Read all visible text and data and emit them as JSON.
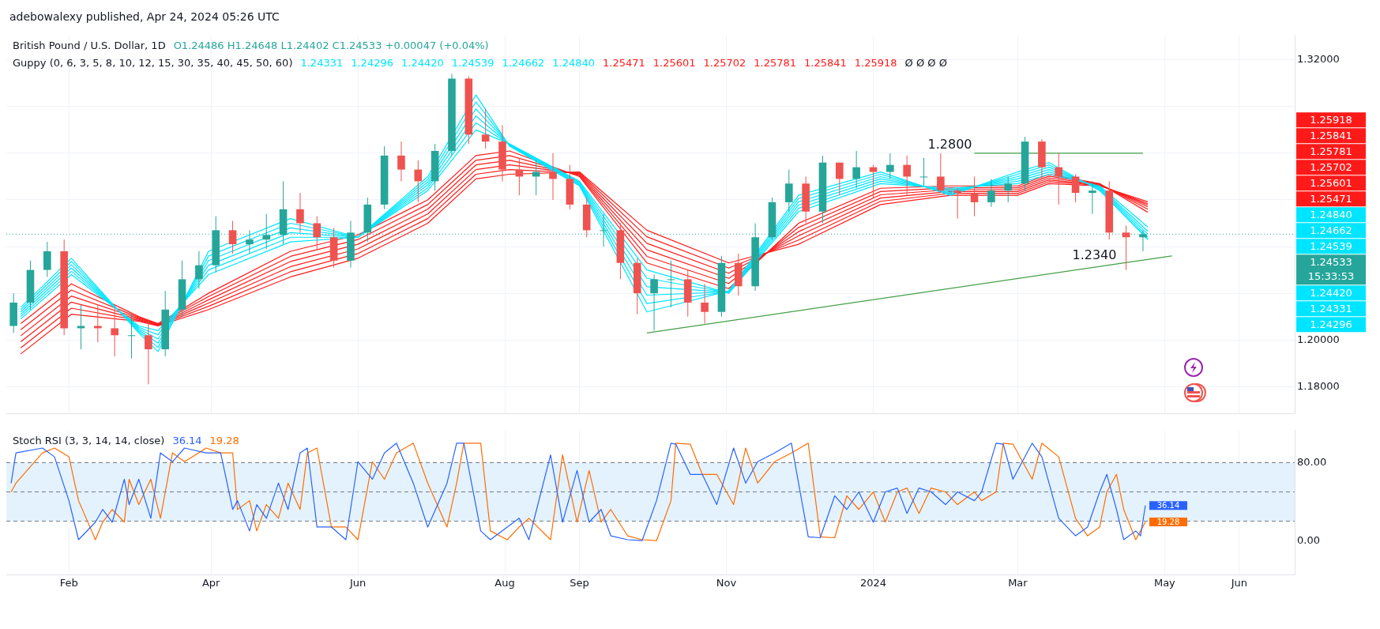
{
  "chart_data": [
    {
      "type": "candlestick",
      "title": "British Pound / U.S. Dollar, 1D",
      "subtitle": "O1.24486 H1.24648 L1.24402 C1.24533 +0.00047 (+0.04%)",
      "legend_title": "Guppy (0, 6, 3, 5, 8, 10, 12, 15, 30, 35, 40, 45, 50, 60)",
      "annotations": [
        "adebowalexy published, Apr 24, 2024 05:26 UTC",
        "1.24331",
        "1.24296",
        "1.24420",
        "1.24539",
        "1.24662",
        "1.24840",
        "1.25471",
        "1.25601",
        "1.25702",
        "1.25781",
        "1.25841",
        "1.25918",
        "Ø Ø Ø Ø",
        "15:33:53",
        {
          "text": "1.2800",
          "x": "2024-02-12",
          "y": 1.28
        },
        {
          "text": "1.2340",
          "x": "2024-04-12",
          "y": 1.2327
        }
      ],
      "x": [
        "2023-01-09",
        "2023-01-16",
        "2023-01-23",
        "2023-01-30",
        "2023-02-06",
        "2023-02-13",
        "2023-02-20",
        "2023-02-27",
        "2023-03-06",
        "2023-03-13",
        "2023-03-20",
        "2023-03-27",
        "2023-04-03",
        "2023-04-10",
        "2023-04-17",
        "2023-04-24",
        "2023-05-01",
        "2023-05-08",
        "2023-05-15",
        "2023-05-22",
        "2023-05-29",
        "2023-06-05",
        "2023-06-12",
        "2023-06-19",
        "2023-06-26",
        "2023-07-03",
        "2023-07-10",
        "2023-07-17",
        "2023-07-24",
        "2023-07-31",
        "2023-08-07",
        "2023-08-14",
        "2023-08-21",
        "2023-08-28",
        "2023-09-04",
        "2023-09-11",
        "2023-09-18",
        "2023-09-25",
        "2023-10-02",
        "2023-10-09",
        "2023-10-16",
        "2023-10-23",
        "2023-10-30",
        "2023-11-06",
        "2023-11-13",
        "2023-11-20",
        "2023-11-27",
        "2023-12-04",
        "2023-12-11",
        "2023-12-18",
        "2023-12-25",
        "2024-01-01",
        "2024-01-08",
        "2024-01-15",
        "2024-01-22",
        "2024-01-29",
        "2024-02-05",
        "2024-02-12",
        "2024-02-19",
        "2024-02-26",
        "2024-03-04",
        "2024-03-11",
        "2024-03-18",
        "2024-03-25",
        "2024-04-01",
        "2024-04-08",
        "2024-04-15",
        "2024-04-22"
      ],
      "ohlc": [
        [
          1.206,
          1.22,
          1.203,
          1.216
        ],
        [
          1.216,
          1.234,
          1.213,
          1.23
        ],
        [
          1.23,
          1.242,
          1.227,
          1.238
        ],
        [
          1.238,
          1.243,
          1.202,
          1.205
        ],
        [
          1.205,
          1.215,
          1.196,
          1.206
        ],
        [
          1.206,
          1.215,
          1.199,
          1.205
        ],
        [
          1.205,
          1.214,
          1.193,
          1.202
        ],
        [
          1.202,
          1.211,
          1.192,
          1.202
        ],
        [
          1.202,
          1.208,
          1.181,
          1.196
        ],
        [
          1.196,
          1.221,
          1.193,
          1.213
        ],
        [
          1.213,
          1.234,
          1.21,
          1.226
        ],
        [
          1.226,
          1.238,
          1.222,
          1.232
        ],
        [
          1.232,
          1.253,
          1.229,
          1.247
        ],
        [
          1.247,
          1.251,
          1.237,
          1.241
        ],
        [
          1.241,
          1.247,
          1.237,
          1.243
        ],
        [
          1.243,
          1.254,
          1.239,
          1.245
        ],
        [
          1.245,
          1.268,
          1.241,
          1.256
        ],
        [
          1.256,
          1.263,
          1.246,
          1.25
        ],
        [
          1.25,
          1.253,
          1.239,
          1.244
        ],
        [
          1.244,
          1.248,
          1.231,
          1.234
        ],
        [
          1.234,
          1.251,
          1.231,
          1.246
        ],
        [
          1.246,
          1.261,
          1.242,
          1.258
        ],
        [
          1.258,
          1.283,
          1.256,
          1.279
        ],
        [
          1.279,
          1.285,
          1.268,
          1.273
        ],
        [
          1.273,
          1.277,
          1.259,
          1.268
        ],
        [
          1.268,
          1.284,
          1.264,
          1.281
        ],
        [
          1.281,
          1.314,
          1.279,
          1.312
        ],
        [
          1.312,
          1.313,
          1.284,
          1.288
        ],
        [
          1.288,
          1.299,
          1.282,
          1.285
        ],
        [
          1.285,
          1.292,
          1.268,
          1.273
        ],
        [
          1.273,
          1.278,
          1.262,
          1.27
        ],
        [
          1.27,
          1.277,
          1.262,
          1.272
        ],
        [
          1.272,
          1.28,
          1.26,
          1.269
        ],
        [
          1.269,
          1.275,
          1.256,
          1.258
        ],
        [
          1.258,
          1.261,
          1.244,
          1.247
        ],
        [
          1.247,
          1.254,
          1.24,
          1.247
        ],
        [
          1.247,
          1.25,
          1.226,
          1.233
        ],
        [
          1.233,
          1.235,
          1.211,
          1.22
        ],
        [
          1.22,
          1.228,
          1.204,
          1.226
        ],
        [
          1.226,
          1.234,
          1.214,
          1.226
        ],
        [
          1.226,
          1.23,
          1.21,
          1.216
        ],
        [
          1.216,
          1.224,
          1.207,
          1.212
        ],
        [
          1.212,
          1.236,
          1.21,
          1.233
        ],
        [
          1.233,
          1.237,
          1.219,
          1.223
        ],
        [
          1.223,
          1.25,
          1.221,
          1.244
        ],
        [
          1.244,
          1.261,
          1.243,
          1.259
        ],
        [
          1.259,
          1.273,
          1.255,
          1.267
        ],
        [
          1.267,
          1.27,
          1.25,
          1.255
        ],
        [
          1.255,
          1.279,
          1.25,
          1.276
        ],
        [
          1.276,
          1.276,
          1.262,
          1.269
        ],
        [
          1.269,
          1.281,
          1.265,
          1.274
        ],
        [
          1.274,
          1.275,
          1.261,
          1.272
        ],
        [
          1.272,
          1.28,
          1.269,
          1.275
        ],
        [
          1.275,
          1.279,
          1.262,
          1.27
        ],
        [
          1.27,
          1.278,
          1.266,
          1.27
        ],
        [
          1.27,
          1.28,
          1.263,
          1.264
        ],
        [
          1.264,
          1.265,
          1.252,
          1.263
        ],
        [
          1.263,
          1.27,
          1.253,
          1.259
        ],
        [
          1.259,
          1.269,
          1.257,
          1.264
        ],
        [
          1.264,
          1.27,
          1.259,
          1.267
        ],
        [
          1.267,
          1.287,
          1.264,
          1.285
        ],
        [
          1.285,
          1.286,
          1.269,
          1.274
        ],
        [
          1.274,
          1.28,
          1.258,
          1.27
        ],
        [
          1.27,
          1.271,
          1.259,
          1.263
        ],
        [
          1.263,
          1.268,
          1.254,
          1.264
        ],
        [
          1.264,
          1.268,
          1.243,
          1.246
        ],
        [
          1.246,
          1.249,
          1.23,
          1.244
        ],
        [
          1.244,
          1.247,
          1.238,
          1.2453
        ]
      ],
      "series": [
        {
          "type": "line",
          "color": "#00e5ff",
          "x": [
            "2023-01-12",
            "2023-02-02",
            "2023-03-02",
            "2023-03-10",
            "2023-03-31",
            "2023-05-04",
            "2023-06-01",
            "2023-06-30",
            "2023-07-20",
            "2023-08-03",
            "2023-09-01",
            "2023-09-29",
            "2023-11-02",
            "2023-12-01",
            "2024-01-04",
            "2024-02-02",
            "2024-03-01",
            "2024-03-14",
            "2024-04-04",
            "2024-04-24"
          ],
          "values": [
            1.214,
            1.235,
            1.203,
            1.195,
            1.238,
            1.252,
            1.244,
            1.27,
            1.305,
            1.283,
            1.266,
            1.212,
            1.221,
            1.262,
            1.272,
            1.262,
            1.272,
            1.276,
            1.264,
            1.24331
          ]
        },
        {
          "type": "line",
          "color": "#00e5ff",
          "x": [
            "2023-01-12",
            "2023-02-02",
            "2023-03-02",
            "2023-03-10",
            "2023-03-31",
            "2023-05-04",
            "2023-06-01",
            "2023-06-30",
            "2023-07-20",
            "2023-08-03",
            "2023-09-01",
            "2023-09-29",
            "2023-11-02",
            "2023-12-01",
            "2024-01-04",
            "2024-02-02",
            "2024-03-01",
            "2024-03-14",
            "2024-04-04",
            "2024-04-24"
          ],
          "values": [
            1.213,
            1.2336,
            1.2036,
            1.1968,
            1.236,
            1.25,
            1.244,
            1.2688,
            1.302,
            1.2832,
            1.2664,
            1.2156,
            1.2208,
            1.2606,
            1.271,
            1.2626,
            1.271,
            1.275,
            1.2644,
            1.24296
          ]
        },
        {
          "type": "line",
          "color": "#00e5ff",
          "x": [
            "2023-01-12",
            "2023-02-02",
            "2023-03-02",
            "2023-03-10",
            "2023-03-31",
            "2023-05-04",
            "2023-06-01",
            "2023-06-30",
            "2023-07-20",
            "2023-08-03",
            "2023-09-01",
            "2023-09-29",
            "2023-11-02",
            "2023-12-01",
            "2024-01-04",
            "2024-02-02",
            "2024-03-01",
            "2024-03-14",
            "2024-04-04",
            "2024-04-24"
          ],
          "values": [
            1.212,
            1.2322,
            1.2042,
            1.1986,
            1.234,
            1.248,
            1.244,
            1.2676,
            1.299,
            1.2834,
            1.2668,
            1.2192,
            1.2206,
            1.2592,
            1.27,
            1.2632,
            1.27,
            1.274,
            1.2648,
            1.2442
          ]
        },
        {
          "type": "line",
          "color": "#00e5ff",
          "x": [
            "2023-01-12",
            "2023-02-02",
            "2023-03-02",
            "2023-03-10",
            "2023-03-31",
            "2023-05-04",
            "2023-06-01",
            "2023-06-30",
            "2023-07-20",
            "2023-08-03",
            "2023-09-01",
            "2023-09-29",
            "2023-11-02",
            "2023-12-01",
            "2024-01-04",
            "2024-02-02",
            "2024-03-01",
            "2024-03-14",
            "2024-04-04",
            "2024-04-24"
          ],
          "values": [
            1.211,
            1.2308,
            1.2048,
            1.2004,
            1.232,
            1.246,
            1.244,
            1.2664,
            1.296,
            1.2836,
            1.2672,
            1.2228,
            1.2204,
            1.2578,
            1.269,
            1.2638,
            1.269,
            1.273,
            1.2652,
            1.24539
          ]
        },
        {
          "type": "line",
          "color": "#00e5ff",
          "x": [
            "2023-01-12",
            "2023-02-02",
            "2023-03-02",
            "2023-03-10",
            "2023-03-31",
            "2023-05-04",
            "2023-06-01",
            "2023-06-30",
            "2023-07-20",
            "2023-08-03",
            "2023-09-01",
            "2023-09-29",
            "2023-11-02",
            "2023-12-01",
            "2024-01-04",
            "2024-02-02",
            "2024-03-01",
            "2024-03-14",
            "2024-04-04",
            "2024-04-24"
          ],
          "values": [
            1.21,
            1.2294,
            1.2054,
            1.2022,
            1.23,
            1.244,
            1.244,
            1.2652,
            1.293,
            1.2838,
            1.2676,
            1.2264,
            1.2202,
            1.2564,
            1.268,
            1.2644,
            1.268,
            1.272,
            1.2656,
            1.24662
          ]
        },
        {
          "type": "line",
          "color": "#00e5ff",
          "x": [
            "2023-01-12",
            "2023-02-02",
            "2023-03-02",
            "2023-03-10",
            "2023-03-31",
            "2023-05-04",
            "2023-06-01",
            "2023-06-30",
            "2023-07-20",
            "2023-08-03",
            "2023-09-01",
            "2023-09-29",
            "2023-11-02",
            "2023-12-01",
            "2024-01-04",
            "2024-02-02",
            "2024-03-01",
            "2024-03-14",
            "2024-04-04",
            "2024-04-24"
          ],
          "values": [
            1.209,
            1.228,
            1.206,
            1.204,
            1.228,
            1.242,
            1.244,
            1.264,
            1.29,
            1.284,
            1.268,
            1.23,
            1.22,
            1.255,
            1.267,
            1.265,
            1.267,
            1.271,
            1.266,
            1.2484
          ]
        },
        {
          "type": "line",
          "color": "#ff1a1a",
          "x": [
            "2023-01-12",
            "2023-02-02",
            "2023-03-02",
            "2023-03-10",
            "2023-03-31",
            "2023-05-04",
            "2023-06-01",
            "2023-06-30",
            "2023-07-20",
            "2023-08-03",
            "2023-09-01",
            "2023-09-29",
            "2023-11-02",
            "2023-12-01",
            "2024-01-04",
            "2024-02-02",
            "2024-03-01",
            "2024-03-14",
            "2024-04-04",
            "2024-04-24"
          ],
          "values": [
            1.207,
            1.224,
            1.21,
            1.207,
            1.22,
            1.238,
            1.245,
            1.26,
            1.279,
            1.281,
            1.27,
            1.233,
            1.222,
            1.25,
            1.265,
            1.266,
            1.266,
            1.271,
            1.267,
            1.25471
          ]
        },
        {
          "type": "line",
          "color": "#ff1a1a",
          "x": [
            "2023-01-12",
            "2023-02-02",
            "2023-03-02",
            "2023-03-10",
            "2023-03-31",
            "2023-05-04",
            "2023-06-01",
            "2023-06-30",
            "2023-07-20",
            "2023-08-03",
            "2023-09-01",
            "2023-09-29",
            "2023-11-02",
            "2023-12-01",
            "2024-01-04",
            "2024-02-02",
            "2024-03-01",
            "2024-03-14",
            "2024-04-04",
            "2024-04-24"
          ],
          "values": [
            1.2044,
            1.2214,
            1.2096,
            1.2068,
            1.2186,
            1.2358,
            1.243,
            1.258,
            1.277,
            1.279,
            1.2704,
            1.2358,
            1.2242,
            1.2482,
            1.2636,
            1.2652,
            1.2652,
            1.2702,
            1.2668,
            1.25601
          ]
        },
        {
          "type": "line",
          "color": "#ff1a1a",
          "x": [
            "2023-01-12",
            "2023-02-02",
            "2023-03-02",
            "2023-03-10",
            "2023-03-31",
            "2023-05-04",
            "2023-06-01",
            "2023-06-30",
            "2023-07-20",
            "2023-08-03",
            "2023-09-01",
            "2023-09-29",
            "2023-11-02",
            "2023-12-01",
            "2024-01-04",
            "2024-02-02",
            "2024-03-01",
            "2024-03-14",
            "2024-04-04",
            "2024-04-24"
          ],
          "values": [
            1.2018,
            1.2188,
            1.2092,
            1.2066,
            1.2172,
            1.2336,
            1.241,
            1.256,
            1.275,
            1.277,
            1.2708,
            1.2386,
            1.2264,
            1.2464,
            1.2622,
            1.2644,
            1.2644,
            1.2694,
            1.2666,
            1.25702
          ]
        },
        {
          "type": "line",
          "color": "#ff1a1a",
          "x": [
            "2023-01-12",
            "2023-02-02",
            "2023-03-02",
            "2023-03-10",
            "2023-03-31",
            "2023-05-04",
            "2023-06-01",
            "2023-06-30",
            "2023-07-20",
            "2023-08-03",
            "2023-09-01",
            "2023-09-29",
            "2023-11-02",
            "2023-12-01",
            "2024-01-04",
            "2024-02-02",
            "2024-03-01",
            "2024-03-14",
            "2024-04-04",
            "2024-04-24"
          ],
          "values": [
            1.1992,
            1.2162,
            1.2088,
            1.2064,
            1.2158,
            1.2314,
            1.239,
            1.254,
            1.273,
            1.275,
            1.2712,
            1.2414,
            1.2286,
            1.2446,
            1.2608,
            1.2636,
            1.2636,
            1.2686,
            1.2664,
            1.25781
          ]
        },
        {
          "type": "line",
          "color": "#ff1a1a",
          "x": [
            "2023-01-12",
            "2023-02-02",
            "2023-03-02",
            "2023-03-10",
            "2023-03-31",
            "2023-05-04",
            "2023-06-01",
            "2023-06-30",
            "2023-07-20",
            "2023-08-03",
            "2023-09-01",
            "2023-09-29",
            "2023-11-02",
            "2023-12-01",
            "2024-01-04",
            "2024-02-02",
            "2024-03-01",
            "2024-03-14",
            "2024-04-04",
            "2024-04-24"
          ],
          "values": [
            1.1966,
            1.2136,
            1.2084,
            1.2062,
            1.2144,
            1.2292,
            1.237,
            1.252,
            1.271,
            1.273,
            1.2716,
            1.2442,
            1.2308,
            1.2428,
            1.2594,
            1.2628,
            1.2628,
            1.2678,
            1.2662,
            1.25841
          ]
        },
        {
          "type": "line",
          "color": "#ff1a1a",
          "x": [
            "2023-01-12",
            "2023-02-02",
            "2023-03-02",
            "2023-03-10",
            "2023-03-31",
            "2023-05-04",
            "2023-06-01",
            "2023-06-30",
            "2023-07-20",
            "2023-08-03",
            "2023-09-01",
            "2023-09-29",
            "2023-11-02",
            "2023-12-01",
            "2024-01-04",
            "2024-02-02",
            "2024-03-01",
            "2024-03-14",
            "2024-04-04",
            "2024-04-24"
          ],
          "values": [
            1.194,
            1.211,
            1.208,
            1.206,
            1.213,
            1.227,
            1.235,
            1.25,
            1.269,
            1.271,
            1.272,
            1.247,
            1.233,
            1.241,
            1.258,
            1.262,
            1.262,
            1.267,
            1.266,
            1.25918
          ]
        },
        {
          "type": "line",
          "color": "#43a047",
          "x": [
            "2023-09-29",
            "2024-04-12",
            "2024-05-04"
          ],
          "values": [
            1.203,
            1.2327,
            1.236
          ]
        },
        {
          "type": "line",
          "color": "#43a047",
          "x": [
            "2024-02-12",
            "2024-04-22"
          ],
          "values": [
            1.28,
            1.28
          ]
        }
      ],
      "ref_lines": [
        {
          "axis": "y",
          "value": 1.24533,
          "label": "1.24533",
          "color": "#26a69a",
          "line_style": "dotted"
        }
      ],
      "xlim": [
        "2023-01-06",
        "2024-06-24"
      ],
      "xticks": [
        {
          "value": "2023-02-01",
          "label": null
        },
        {
          "value": "2023-04-01",
          "label": null
        },
        {
          "value": "2023-06-01",
          "label": null
        },
        {
          "value": "2023-08-01",
          "label": null
        },
        {
          "value": "2023-09-01",
          "label": null
        },
        {
          "value": "2023-11-01",
          "label": null
        },
        {
          "value": "2024-01-01",
          "label": null
        },
        {
          "value": "2024-03-01",
          "label": null
        },
        {
          "value": "2024-05-01",
          "label": null
        },
        {
          "value": "2024-06-01",
          "label": null
        }
      ],
      "ylim": [
        1.1685,
        1.3305
      ],
      "yticks": [
        {
          "value": 1.32,
          "label": "1.32000"
        },
        {
          "value": 1.3,
          "label": null
        },
        {
          "value": 1.28,
          "label": null
        },
        {
          "value": 1.26,
          "label": null
        },
        {
          "value": 1.24,
          "label": null
        },
        {
          "value": 1.22,
          "label": null
        },
        {
          "value": 1.2,
          "label": "1.20000"
        },
        {
          "value": 1.18,
          "label": "1.18000"
        }
      ],
      "tick_labels": "y",
      "grid": true,
      "legend": false,
      "marker": "none"
    },
    {
      "type": "line",
      "title": "Stoch RSI (3, 3, 14, 14, close)",
      "series": [
        {
          "color": "#2962ff",
          "x": [
            "2023-01-08",
            "2023-01-10",
            "2023-01-21",
            "2023-01-26",
            "2023-02-01",
            "2023-02-05",
            "2023-02-12",
            "2023-02-15",
            "2023-02-19",
            "2023-02-24",
            "2023-02-26",
            "2023-03-02",
            "2023-03-07",
            "2023-03-11",
            "2023-03-16",
            "2023-03-21",
            "2023-03-30",
            "2023-04-05",
            "2023-04-10",
            "2023-04-12",
            "2023-04-17",
            "2023-04-20",
            "2023-04-24",
            "2023-04-29",
            "2023-05-03",
            "2023-05-08",
            "2023-05-11",
            "2023-05-15",
            "2023-05-21",
            "2023-05-27",
            "2023-06-01",
            "2023-06-07",
            "2023-06-12",
            "2023-06-17",
            "2023-06-24",
            "2023-06-30",
            "2023-07-08",
            "2023-07-12",
            "2023-07-15",
            "2023-07-22",
            "2023-07-26",
            "2023-08-02",
            "2023-08-07",
            "2023-08-11",
            "2023-08-20",
            "2023-08-25",
            "2023-08-31",
            "2023-09-05",
            "2023-09-10",
            "2023-09-14",
            "2023-09-21",
            "2023-09-27",
            "2023-10-03",
            "2023-10-09",
            "2023-10-11",
            "2023-10-17",
            "2023-10-22",
            "2023-10-28",
            "2023-11-04",
            "2023-11-09",
            "2023-11-14",
            "2023-11-21",
            "2023-11-28",
            "2023-12-05",
            "2023-12-10",
            "2023-12-16",
            "2023-12-21",
            "2023-12-26",
            "2024-01-01",
            "2024-01-06",
            "2024-01-11",
            "2024-01-15",
            "2024-01-20",
            "2024-01-25",
            "2024-01-31",
            "2024-02-05",
            "2024-02-12",
            "2024-02-15",
            "2024-02-21",
            "2024-02-24",
            "2024-02-28",
            "2024-03-07",
            "2024-03-11",
            "2024-03-18",
            "2024-03-25",
            "2024-03-30",
            "2024-04-04",
            "2024-04-07",
            "2024-04-11",
            "2024-04-14",
            "2024-04-19",
            "2024-04-21",
            "2024-04-23"
          ],
          "values": [
            59,
            90,
            95,
            86,
            41,
            1,
            19,
            32,
            19,
            63,
            37,
            63,
            23,
            90,
            81,
            95,
            90,
            90,
            32,
            41,
            10,
            37,
            23,
            59,
            32,
            90,
            95,
            14,
            14,
            1,
            81,
            63,
            90,
            100,
            59,
            14,
            59,
            100,
            100,
            10,
            1,
            14,
            23,
            1,
            88,
            19,
            72,
            19,
            32,
            5,
            1,
            0,
            41,
            100,
            99,
            68,
            68,
            37,
            95,
            59,
            81,
            90,
            100,
            4,
            3,
            46,
            32,
            50,
            19,
            50,
            54,
            28,
            54,
            50,
            37,
            50,
            41,
            50,
            100,
            99,
            63,
            100,
            86,
            23,
            5,
            14,
            50,
            68,
            32,
            1,
            10,
            5,
            36.14
          ],
          "value_labels": [
            null,
            null,
            null,
            null,
            null,
            null,
            null,
            null,
            null,
            null,
            null,
            null,
            null,
            null,
            null,
            null,
            null,
            null,
            null,
            null,
            null,
            null,
            null,
            null,
            null,
            null,
            null,
            null,
            null,
            null,
            null,
            null,
            null,
            null,
            null,
            null,
            null,
            null,
            null,
            null,
            null,
            null,
            null,
            null,
            null,
            null,
            null,
            null,
            null,
            null,
            null,
            null,
            null,
            null,
            null,
            null,
            null,
            null,
            null,
            null,
            null,
            null,
            null,
            null,
            null,
            null,
            null,
            null,
            null,
            null,
            null,
            null,
            null,
            null,
            null,
            null,
            null,
            null,
            null,
            null,
            null,
            null,
            null,
            null,
            null,
            null,
            null,
            null,
            null,
            null,
            null,
            null,
            "36.14"
          ]
        },
        {
          "color": "#ff6d00",
          "x": [
            "2023-01-08",
            "2023-01-10",
            "2023-01-21",
            "2023-01-26",
            "2023-02-01",
            "2023-02-05",
            "2023-02-12",
            "2023-02-15",
            "2023-02-19",
            "2023-02-24",
            "2023-02-26",
            "2023-03-02",
            "2023-03-07",
            "2023-03-11",
            "2023-03-16",
            "2023-03-21",
            "2023-03-30",
            "2023-04-05",
            "2023-04-10",
            "2023-04-12",
            "2023-04-17",
            "2023-04-20",
            "2023-04-24",
            "2023-04-29",
            "2023-05-03",
            "2023-05-08",
            "2023-05-11",
            "2023-05-15",
            "2023-05-21",
            "2023-05-27",
            "2023-06-01",
            "2023-06-07",
            "2023-06-12",
            "2023-06-17",
            "2023-06-24",
            "2023-06-30",
            "2023-07-08",
            "2023-07-12",
            "2023-07-15",
            "2023-07-22",
            "2023-07-26",
            "2023-08-02",
            "2023-08-07",
            "2023-08-11",
            "2023-08-20",
            "2023-08-25",
            "2023-08-31",
            "2023-09-05",
            "2023-09-10",
            "2023-09-14",
            "2023-09-21",
            "2023-09-27",
            "2023-10-03",
            "2023-10-09",
            "2023-10-11",
            "2023-10-17",
            "2023-10-22",
            "2023-10-28",
            "2023-11-04",
            "2023-11-09",
            "2023-11-14",
            "2023-11-21",
            "2023-11-28",
            "2023-12-05",
            "2023-12-10",
            "2023-12-16",
            "2023-12-21",
            "2023-12-26",
            "2024-01-01",
            "2024-01-06",
            "2024-01-11",
            "2024-01-15",
            "2024-01-20",
            "2024-01-25",
            "2024-01-31",
            "2024-02-05",
            "2024-02-12",
            "2024-02-15",
            "2024-02-21",
            "2024-02-24",
            "2024-02-28",
            "2024-03-07",
            "2024-03-11",
            "2024-03-18",
            "2024-03-25",
            "2024-03-30",
            "2024-04-04",
            "2024-04-07",
            "2024-04-11",
            "2024-04-14",
            "2024-04-19",
            "2024-04-21",
            "2024-04-23"
          ],
          "values": [
            50,
            59,
            90,
            95,
            86,
            41,
            1,
            19,
            32,
            19,
            63,
            37,
            63,
            23,
            90,
            81,
            95,
            90,
            90,
            32,
            41,
            10,
            37,
            23,
            59,
            32,
            90,
            95,
            14,
            14,
            1,
            81,
            63,
            90,
            100,
            59,
            14,
            59,
            100,
            100,
            10,
            1,
            14,
            23,
            1,
            88,
            19,
            72,
            19,
            32,
            5,
            1,
            0,
            41,
            100,
            99,
            68,
            68,
            37,
            95,
            59,
            81,
            90,
            100,
            4,
            3,
            46,
            32,
            50,
            19,
            50,
            54,
            28,
            54,
            50,
            37,
            50,
            41,
            50,
            100,
            99,
            63,
            100,
            86,
            23,
            5,
            14,
            50,
            68,
            32,
            1,
            10,
            19.28
          ],
          "value_labels": [
            null,
            null,
            null,
            null,
            null,
            null,
            null,
            null,
            null,
            null,
            null,
            null,
            null,
            null,
            null,
            null,
            null,
            null,
            null,
            null,
            null,
            null,
            null,
            null,
            null,
            null,
            null,
            null,
            null,
            null,
            null,
            null,
            null,
            null,
            null,
            null,
            null,
            null,
            null,
            null,
            null,
            null,
            null,
            null,
            null,
            null,
            null,
            null,
            null,
            null,
            null,
            null,
            null,
            null,
            null,
            null,
            null,
            null,
            null,
            null,
            null,
            null,
            null,
            null,
            null,
            null,
            null,
            null,
            null,
            null,
            null,
            null,
            null,
            null,
            null,
            null,
            null,
            null,
            null,
            null,
            null,
            null,
            null,
            null,
            null,
            null,
            null,
            null,
            null,
            null,
            null,
            null,
            "19.28"
          ]
        }
      ],
      "bands": [
        {
          "axis": "y",
          "from": 20,
          "to": 80,
          "color": "#e3f2fd"
        }
      ],
      "ref_lines": [
        {
          "axis": "y",
          "value": 80,
          "color": "#787b86",
          "line_style": "dashed"
        },
        {
          "axis": "y",
          "value": 50,
          "color": "#787b86",
          "line_style": "dashed"
        },
        {
          "axis": "y",
          "value": 20,
          "color": "#787b86",
          "line_style": "dashed"
        }
      ],
      "xlim": [
        "2023-01-06",
        "2024-06-24"
      ],
      "xticks": [
        {
          "value": "2023-02-01",
          "label": "Feb"
        },
        {
          "value": "2023-04-01",
          "label": "Apr"
        },
        {
          "value": "2023-06-01",
          "label": "Jun"
        },
        {
          "value": "2023-08-01",
          "label": "Aug"
        },
        {
          "value": "2023-09-01",
          "label": "Sep"
        },
        {
          "value": "2023-11-01",
          "label": "Nov"
        },
        {
          "value": "2024-01-01",
          "label": "2024"
        },
        {
          "value": "2024-03-01",
          "label": "Mar"
        },
        {
          "value": "2024-05-01",
          "label": "May"
        },
        {
          "value": "2024-06-01",
          "label": "Jun"
        }
      ],
      "ylim": [
        -35,
        113
      ],
      "yticks": [
        {
          "value": 80,
          "label": "80.00"
        },
        {
          "value": 0,
          "label": "0.00"
        }
      ],
      "grid": "x",
      "legend": false,
      "marker": "none"
    }
  ]
}
